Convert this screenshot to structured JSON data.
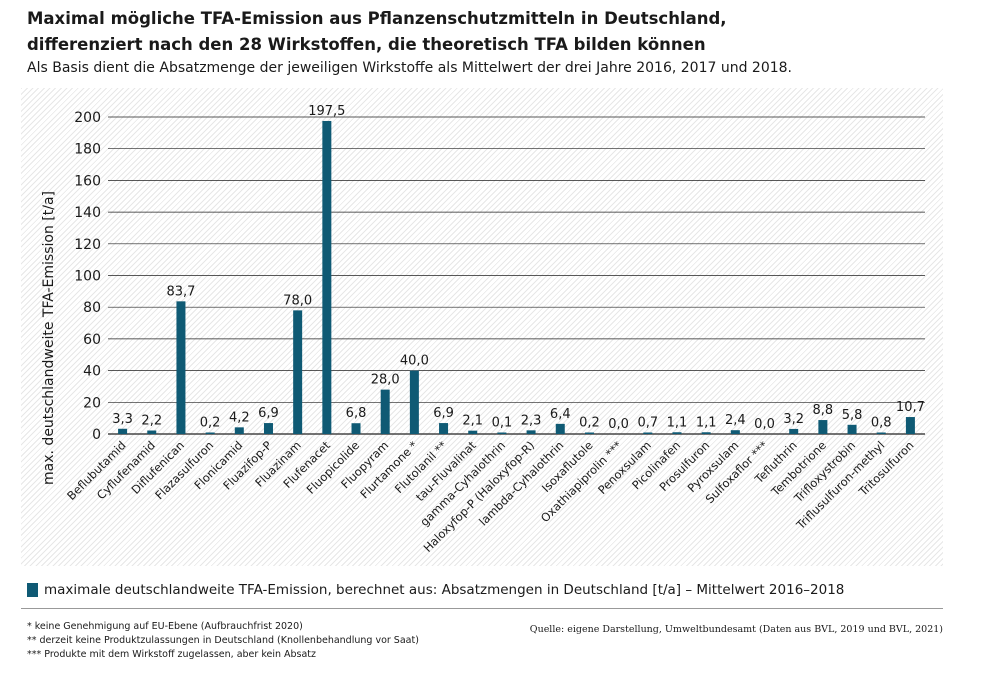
{
  "header": {
    "title_line1": "Maximal mögliche TFA-Emission aus Pflanzenschutzmitteln in Deutschland,",
    "title_line2": "differenziert nach den 28 Wirkstoffen, die theoretisch TFA bilden können",
    "subtitle": "Als Basis dient die Absatzmenge der jeweiligen Wirkstoffe als Mittelwert der drei Jahre 2016, 2017 und 2018."
  },
  "chart_data": {
    "type": "bar",
    "title": "",
    "xlabel": "",
    "ylabel": "max. deutschlandweite TFA-Emission [t/a]",
    "ylim": [
      0,
      200
    ],
    "yticks": [
      0,
      20,
      40,
      60,
      80,
      100,
      120,
      140,
      160,
      180,
      200
    ],
    "grid": true,
    "bar_color": "#0f5a74",
    "categories": [
      "Beflubutamid",
      "Cyflufenamid",
      "Diflufenican",
      "Flazasulfuron",
      "Flonicamid",
      "Fluazifop-P",
      "Fluazinam",
      "Flufenacet",
      "Fluopicolide",
      "Fluopyram",
      "Flurtamone *",
      "Flutolanil **",
      "tau-Fluvalinat",
      "gamma-Cyhalothrin",
      "Haloxyfop-P (Haloxyfop-R)",
      "lambda-Cyhalothrin",
      "Isoxaflutole",
      "Oxathiapiprolin ***",
      "Penoxsulam",
      "Picolinafen",
      "Prosulfuron",
      "Pyroxsulam",
      "Sulfoxaflor ***",
      "Tefluthrin",
      "Tembotrione",
      "Trifloxystrobin",
      "Triflusulfuron-methyl",
      "Tritosulfuron"
    ],
    "values": [
      3.3,
      2.2,
      83.7,
      0.2,
      4.2,
      6.9,
      78.0,
      197.5,
      6.8,
      28.0,
      40.0,
      6.9,
      2.1,
      0.1,
      2.3,
      6.4,
      0.2,
      0.0,
      0.7,
      1.1,
      1.1,
      2.4,
      0.0,
      3.2,
      8.8,
      5.8,
      0.8,
      10.7
    ],
    "value_labels": [
      "3,3",
      "2,2",
      "83,7",
      "0,2",
      "4,2",
      "6,9",
      "78,0",
      "197,5",
      "6,8",
      "28,0",
      "40,0",
      "6,9",
      "2,1",
      "0,1",
      "2,3",
      "6,4",
      "0,2",
      "0,0",
      "0,7",
      "1,1",
      "1,1",
      "2,4",
      "0,0",
      "3,2",
      "8,8",
      "5,8",
      "0,8",
      "10,7"
    ],
    "legend": "maximale deutschlandweite TFA-Emission, berechnet aus: Absatzmengen in Deutschland [t/a] – Mittelwert 2016–2018"
  },
  "footnotes": {
    "note1": "* keine Genehmigung auf EU-Ebene (Aufbrauchfrist 2020)",
    "note2": "** derzeit keine Produktzulassungen in Deutschland (Knollenbehandlung vor Saat)",
    "note3": "*** Produkte mit dem Wirkstoff zugelassen, aber kein Absatz"
  },
  "source": "Quelle: eigene Darstellung, Umweltbundesamt (Daten aus BVL, 2019 und BVL, 2021)"
}
